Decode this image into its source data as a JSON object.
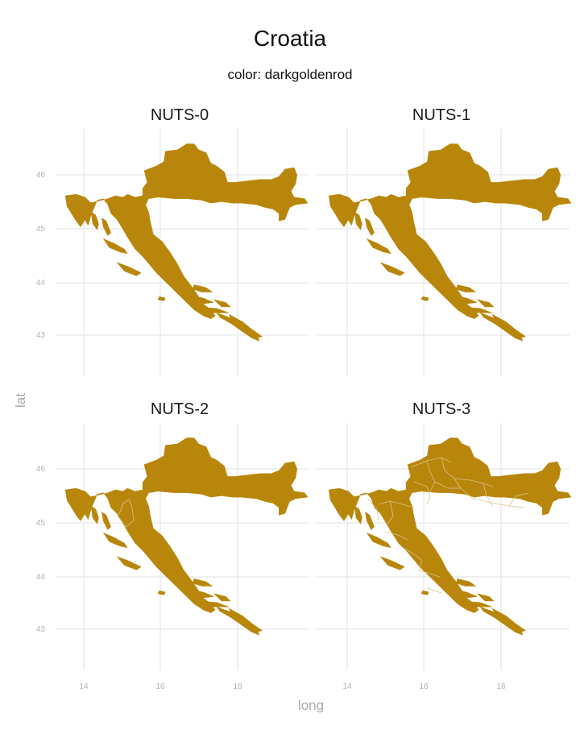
{
  "title": "Croatia",
  "subtitle": "color: darkgoldenrod",
  "fill_color": "#b8860b",
  "border_color": "#d9c48a",
  "grid_color": "#ebebeb",
  "axes": {
    "xlabel": "long",
    "ylabel": "lat",
    "x_ticks": [
      14,
      16,
      18
    ],
    "y_ticks": [
      43,
      44,
      45,
      46
    ]
  },
  "panels": [
    {
      "label": "NUTS-0",
      "regions": 1
    },
    {
      "label": "NUTS-1",
      "regions": 1
    },
    {
      "label": "NUTS-2",
      "regions": 2
    },
    {
      "label": "NUTS-3",
      "regions": 21
    }
  ]
}
